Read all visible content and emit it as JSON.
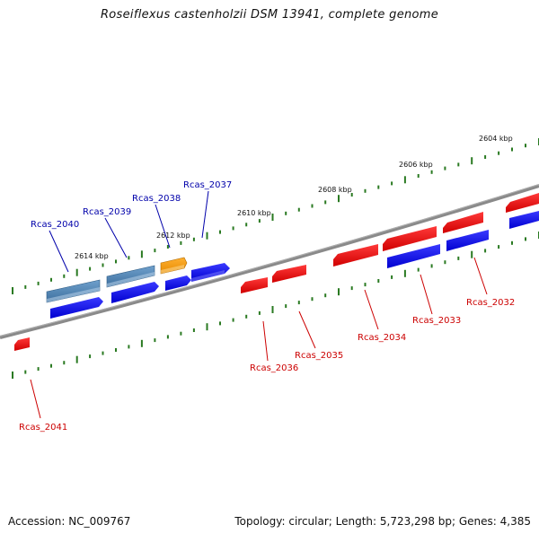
{
  "title": "Roseiflexus castenholzii DSM 13941, complete genome",
  "footer": {
    "accession": "Accession: NC_009767",
    "summary": "Topology: circular; Length: 5,723,298 bp; Genes: 4,385"
  },
  "colors": {
    "forward_gene": "#0000ff",
    "reverse_gene": "#ff0000",
    "selected_gene": "#ff9900",
    "rna_gene": "#4a7fb0",
    "tick": "#2a7a22",
    "backbone": "#808080",
    "forward_label": "#0000aa",
    "reverse_label": "#cc0000"
  },
  "scale_labels": [
    "2604 kbp",
    "2606 kbp",
    "2608 kbp",
    "2610 kbp",
    "2612 kbp",
    "2614 kbp"
  ],
  "genes": [
    {
      "id": "Rcas_2040",
      "strand": "forward",
      "type": "rna"
    },
    {
      "id": "Rcas_2039",
      "strand": "forward",
      "type": "rna"
    },
    {
      "id": "Rcas_2038",
      "strand": "forward",
      "type": "selected"
    },
    {
      "id": "Rcas_2037",
      "strand": "forward",
      "type": "cds"
    },
    {
      "id": "Rcas_2036",
      "strand": "reverse",
      "type": "cds"
    },
    {
      "id": "Rcas_2035",
      "strand": "reverse",
      "type": "cds"
    },
    {
      "id": "Rcas_2034",
      "strand": "reverse",
      "type": "cds"
    },
    {
      "id": "Rcas_2033",
      "strand": "reverse",
      "type": "cds"
    },
    {
      "id": "Rcas_2032",
      "strand": "reverse",
      "type": "cds"
    },
    {
      "id": "Rcas_2041",
      "strand": "reverse",
      "type": "cds"
    }
  ]
}
